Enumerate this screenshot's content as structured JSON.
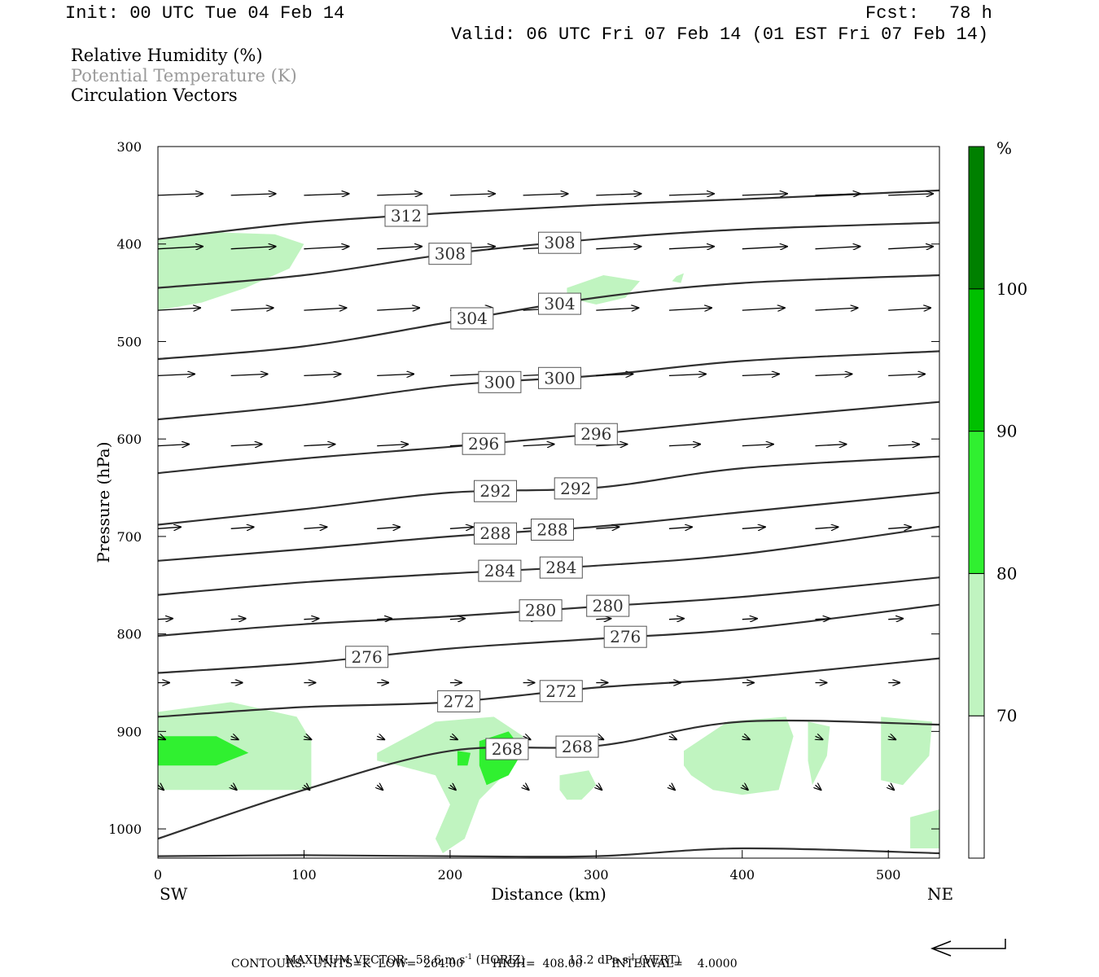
{
  "header": {
    "init": "Init: 00 UTC Tue 04 Feb 14",
    "fcst_label": "Fcst:",
    "fcst_value": "78 h",
    "valid": "Valid: 06 UTC Fri 07 Feb 14 (01 EST Fri 07 Feb 14)"
  },
  "legend": {
    "rh": "Relative Humidity (%)",
    "theta": "Potential Temperature (K)",
    "vectors": "Circulation Vectors"
  },
  "colors": {
    "rh_70_80": "#c0f4c0",
    "rh_80_90": "#30f030",
    "rh_90_100": "#00c000",
    "rh_100": "#008000",
    "contour": "#303030",
    "theta_text": "#9a9a9a"
  },
  "footer": {
    "max_vector_label": "MAXIMUM VECTOR:",
    "max_horiz": "58.6 m s",
    "horiz_sup": "-1",
    "horiz_tag": "(HORIZ)",
    "max_vert": "13.2 dPa s",
    "vert_sup": "-1",
    "vert_tag": "(VERT)",
    "contours": "CONTOURS:  UNITS=K  LOW=  264.00        HIGH=  408.00        INTERVAL=    4.0000"
  },
  "chart_data": {
    "type": "cross-section",
    "xlabel": "Distance (km)",
    "ylabel": "Pressure (hPa)",
    "x_left_label": "SW",
    "x_right_label": "NE",
    "xlim": [
      0,
      535
    ],
    "ylim": [
      1030,
      300
    ],
    "x_ticks": [
      0,
      100,
      200,
      300,
      400,
      500
    ],
    "y_ticks": [
      300,
      400,
      500,
      600,
      700,
      800,
      900,
      1000
    ],
    "colorbar": {
      "unit": "%",
      "levels": [
        70,
        80,
        90,
        100
      ],
      "tick_labels": [
        "70",
        "80",
        "90",
        "100"
      ]
    },
    "theta_contours": [
      {
        "value": 312,
        "x": [
          0,
          100,
          200,
          300,
          400,
          535
        ],
        "p": [
          395,
          378,
          368,
          360,
          354,
          345
        ],
        "labels": [
          {
            "text": "312",
            "x": 170
          }
        ]
      },
      {
        "value": 308,
        "x": [
          0,
          100,
          200,
          300,
          400,
          535
        ],
        "p": [
          445,
          432,
          410,
          395,
          385,
          378
        ],
        "labels": [
          {
            "text": "308",
            "x": 200
          },
          {
            "text": "308",
            "x": 275
          }
        ]
      },
      {
        "value": 304,
        "x": [
          0,
          100,
          200,
          300,
          400,
          535
        ],
        "p": [
          518,
          505,
          480,
          455,
          440,
          432
        ],
        "labels": [
          {
            "text": "304",
            "x": 215
          },
          {
            "text": "304",
            "x": 275
          }
        ]
      },
      {
        "value": 300,
        "x": [
          0,
          100,
          200,
          300,
          400,
          535
        ],
        "p": [
          580,
          565,
          545,
          535,
          520,
          510
        ],
        "labels": [
          {
            "text": "300",
            "x": 234
          },
          {
            "text": "300",
            "x": 275
          }
        ]
      },
      {
        "value": 296,
        "x": [
          0,
          100,
          200,
          300,
          400,
          535
        ],
        "p": [
          635,
          620,
          608,
          595,
          580,
          562
        ],
        "labels": [
          {
            "text": "296",
            "x": 223
          },
          {
            "text": "296",
            "x": 300
          }
        ]
      },
      {
        "value": 292,
        "x": [
          0,
          100,
          200,
          300,
          400,
          535
        ],
        "p": [
          688,
          672,
          655,
          650,
          630,
          618
        ],
        "labels": [
          {
            "text": "292",
            "x": 231
          },
          {
            "text": "292",
            "x": 286
          }
        ]
      },
      {
        "value": 288,
        "x": [
          0,
          100,
          200,
          300,
          400,
          535
        ],
        "p": [
          725,
          713,
          700,
          690,
          675,
          655
        ],
        "labels": [
          {
            "text": "288",
            "x": 231
          },
          {
            "text": "288",
            "x": 270
          }
        ]
      },
      {
        "value": 284,
        "x": [
          0,
          100,
          200,
          300,
          400,
          535
        ],
        "p": [
          760,
          747,
          738,
          730,
          718,
          690
        ],
        "labels": [
          {
            "text": "284",
            "x": 234
          },
          {
            "text": "284",
            "x": 276
          }
        ]
      },
      {
        "value": 280,
        "x": [
          0,
          100,
          200,
          300,
          400,
          535
        ],
        "p": [
          802,
          790,
          782,
          772,
          762,
          742
        ],
        "labels": [
          {
            "text": "280",
            "x": 262
          },
          {
            "text": "280",
            "x": 308
          }
        ]
      },
      {
        "value": 276,
        "x": [
          0,
          100,
          200,
          300,
          400,
          535
        ],
        "p": [
          840,
          830,
          815,
          805,
          795,
          770
        ],
        "labels": [
          {
            "text": "276",
            "x": 143
          },
          {
            "text": "276",
            "x": 320
          }
        ]
      },
      {
        "value": 272,
        "x": [
          0,
          100,
          200,
          300,
          400,
          535
        ],
        "p": [
          885,
          875,
          870,
          855,
          845,
          825
        ],
        "labels": [
          {
            "text": "272",
            "x": 206
          },
          {
            "text": "272",
            "x": 276
          }
        ]
      },
      {
        "value": 268,
        "x": [
          0,
          100,
          200,
          300,
          400,
          535
        ],
        "p": [
          1010,
          960,
          920,
          915,
          890,
          893
        ],
        "labels": [
          {
            "text": "268",
            "x": 239
          },
          {
            "text": "268",
            "x": 287
          }
        ]
      },
      {
        "value": 264,
        "x": [
          0,
          100,
          200,
          300,
          400,
          535
        ],
        "p": [
          1028,
          1027,
          1028,
          1028,
          1020,
          1025
        ],
        "labels": []
      }
    ],
    "rh_regions": [
      {
        "level": "70-80",
        "x": [
          0,
          40,
          80,
          100,
          90,
          60,
          30,
          0
        ],
        "p": [
          395,
          388,
          390,
          400,
          425,
          445,
          460,
          468
        ]
      },
      {
        "level": "70-80",
        "x": [
          280,
          305,
          330,
          320,
          300,
          280
        ],
        "p": [
          445,
          432,
          438,
          455,
          462,
          455
        ]
      },
      {
        "level": "70-80",
        "x": [
          355,
          360,
          358,
          352
        ],
        "p": [
          433,
          430,
          440,
          438
        ]
      },
      {
        "level": "70-80",
        "x": [
          0,
          50,
          95,
          105,
          105,
          60,
          0
        ],
        "p": [
          880,
          870,
          885,
          910,
          960,
          960,
          960
        ]
      },
      {
        "level": "80-90",
        "x": [
          0,
          40,
          62,
          40,
          0
        ],
        "p": [
          905,
          905,
          922,
          935,
          935
        ]
      },
      {
        "level": "70-80",
        "x": [
          150,
          190,
          230,
          250,
          240,
          220,
          210,
          195,
          190,
          200,
          190,
          165,
          150
        ],
        "p": [
          922,
          890,
          885,
          905,
          940,
          970,
          1010,
          1025,
          1010,
          975,
          945,
          935,
          930
        ]
      },
      {
        "level": "80-90",
        "x": [
          205,
          214,
          212,
          205
        ],
        "p": [
          920,
          922,
          935,
          935
        ]
      },
      {
        "level": "80-90",
        "x": [
          220,
          240,
          250,
          240,
          225,
          220
        ],
        "p": [
          910,
          900,
          920,
          945,
          955,
          935
        ]
      },
      {
        "level": "70-80",
        "x": [
          275,
          295,
          300,
          290,
          280,
          275
        ],
        "p": [
          945,
          940,
          955,
          970,
          970,
          960
        ]
      },
      {
        "level": "70-80",
        "x": [
          360,
          390,
          430,
          435,
          425,
          400,
          380,
          365,
          360
        ],
        "p": [
          920,
          890,
          885,
          905,
          960,
          965,
          960,
          945,
          935
        ]
      },
      {
        "level": "70-80",
        "x": [
          445,
          460,
          458,
          448,
          445
        ],
        "p": [
          890,
          895,
          925,
          955,
          930
        ]
      },
      {
        "level": "70-80",
        "x": [
          495,
          530,
          528,
          510,
          495
        ],
        "p": [
          885,
          890,
          925,
          955,
          950
        ]
      },
      {
        "level": "70-80",
        "x": [
          515,
          535,
          535,
          515
        ],
        "p": [
          988,
          980,
          1020,
          1020
        ]
      }
    ],
    "vectors_note": "circulation vectors: horizontal wind with vertical motion, reference vector 58.6 m s-1 (HORIZ) / 13.2 dPa s-1 (VERT)"
  }
}
